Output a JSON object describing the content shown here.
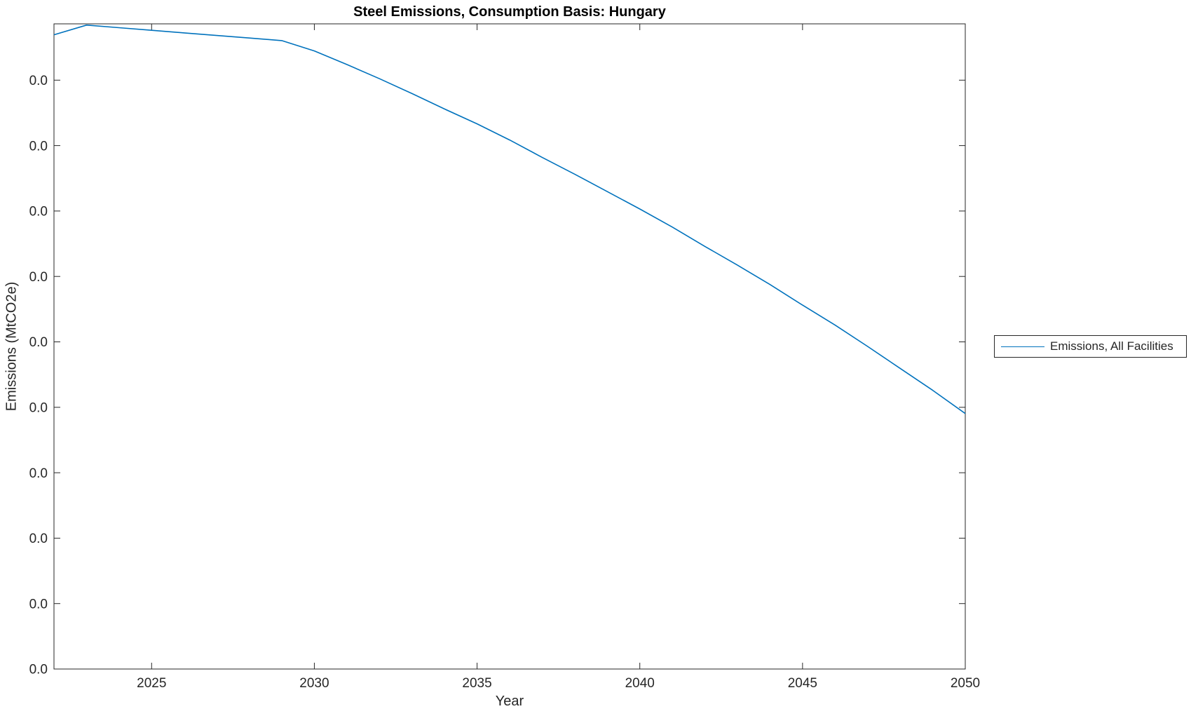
{
  "figure": {
    "background_color": "#ffffff",
    "axes_color": "#262626",
    "text_color": "#262626"
  },
  "legend": {
    "position": "outside-right",
    "entries": [
      {
        "label": "Emissions, All Facilities",
        "color": "#0072BD"
      }
    ]
  },
  "chart_data": {
    "type": "line",
    "title": "Steel Emissions, Consumption Basis: Hungary",
    "xlabel": "Year",
    "ylabel": "Emissions (MtCO2e)",
    "grid": false,
    "legend_position": "outside-right",
    "xlim": [
      2022,
      2050
    ],
    "x_ticks": [
      2025,
      2030,
      2035,
      2040,
      2045,
      2050
    ],
    "y_tick_labels": [
      "0.0",
      "0.0",
      "0.0",
      "0.0",
      "0.0",
      "0.0",
      "0.0",
      "0.0",
      "0.0",
      "0.0"
    ],
    "y_tick_label_text": "0.0",
    "x": [
      2022,
      2023,
      2024,
      2025,
      2026,
      2027,
      2028,
      2029,
      2030,
      2031,
      2032,
      2033,
      2034,
      2035,
      2036,
      2037,
      2038,
      2039,
      2040,
      2041,
      2042,
      2043,
      2044,
      2045,
      2046,
      2047,
      2048,
      2049,
      2050
    ],
    "series": [
      {
        "name": "Emissions, All Facilities",
        "color": "#0072BD",
        "values_fraction_of_plot_height": [
          0.983,
          0.998,
          0.994,
          0.99,
          0.986,
          0.982,
          0.978,
          0.974,
          0.958,
          0.937,
          0.915,
          0.892,
          0.868,
          0.845,
          0.82,
          0.793,
          0.767,
          0.74,
          0.713,
          0.685,
          0.655,
          0.626,
          0.596,
          0.564,
          0.533,
          0.5,
          0.466,
          0.432,
          0.396
        ]
      }
    ]
  }
}
